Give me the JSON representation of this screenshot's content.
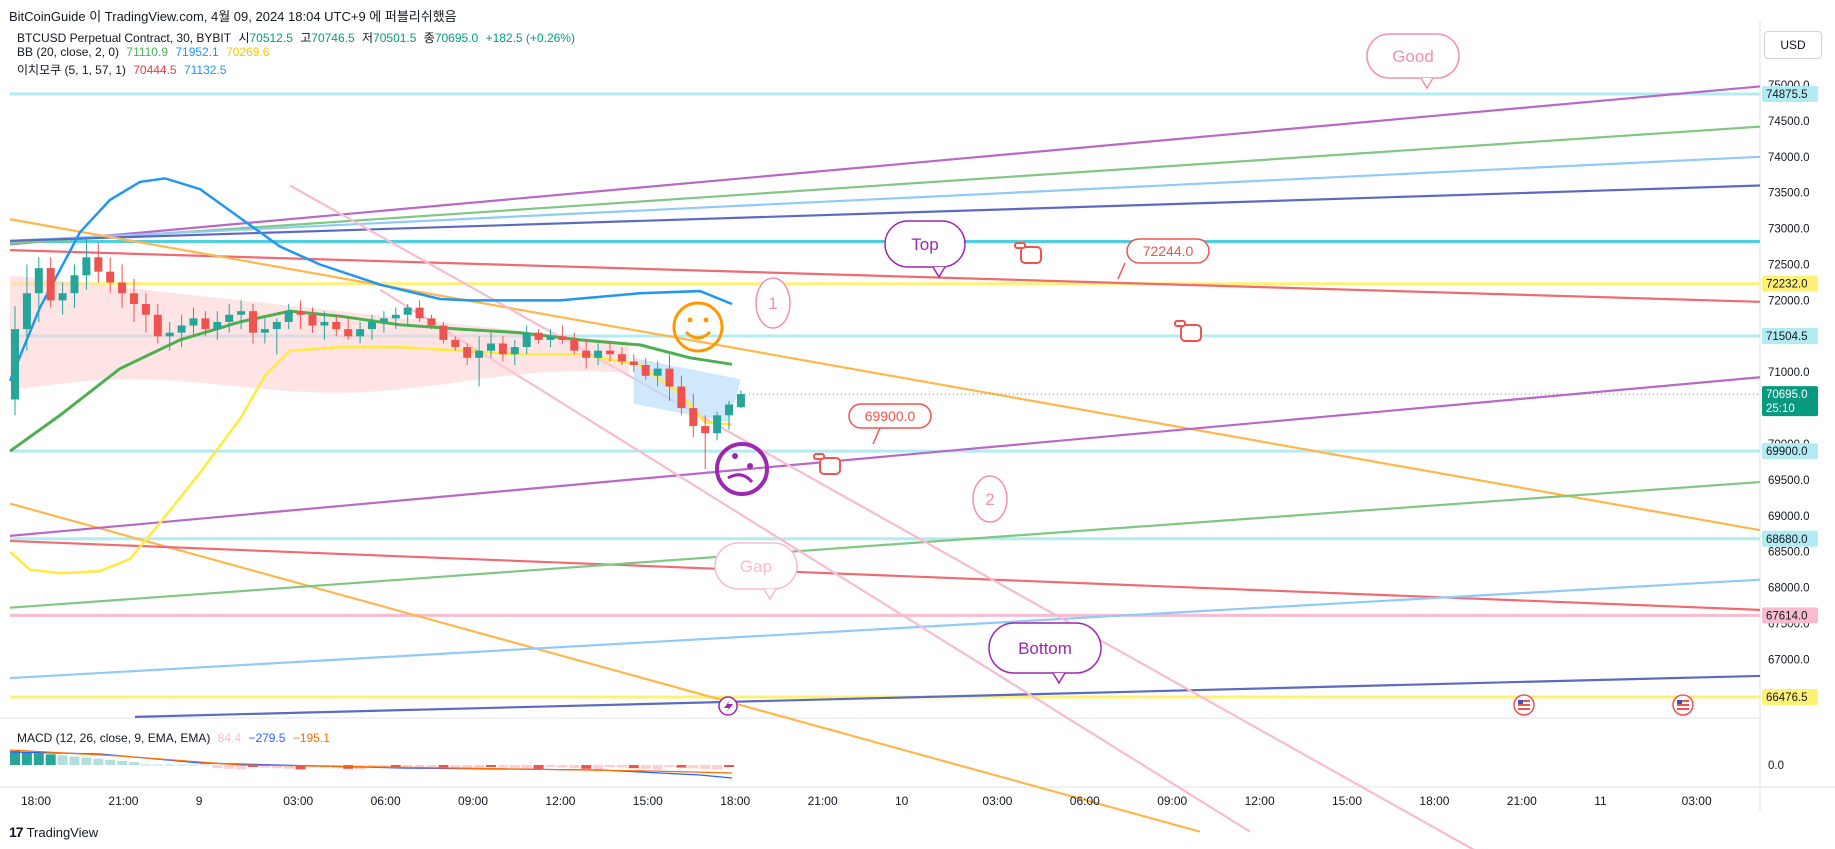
{
  "header": {
    "publisher": "BitCoinGuide 이 TradingView.com, 4월 09, 2024 18:04 UTC+9 에 퍼블리쉬했음"
  },
  "legend": {
    "symbol": "BTCUSD Perpetual Contract, 30, BYBIT",
    "open_label": "시",
    "open": "70512.5",
    "high_label": "고",
    "high": "70746.5",
    "low_label": "저",
    "low": "70501.5",
    "close_label": "종",
    "close": "70695.0",
    "change": "+182.5 (+0.26%)",
    "bb_label": "BB (20, close, 2, 0)",
    "bb_basis": "71110.9",
    "bb_upper": "71952.1",
    "bb_lower": "70269.6",
    "ichimoku_label": "이치모쿠 (5, 1, 57, 1)",
    "ich_a": "70444.5",
    "ich_b": "71132.5",
    "macd_label": "MACD (12, 26, close, 9, EMA, EMA)",
    "macd_hist": "84.4",
    "macd_line": "−279.5",
    "macd_signal": "−195.1"
  },
  "currency_button": "USD",
  "footer": {
    "brand": "TradingView",
    "logo": "17"
  },
  "colors": {
    "up": "#26a69a",
    "down": "#ef5350",
    "purple": "#ba68c8",
    "green": "#81c784",
    "lightblue": "#90caf9",
    "navy": "#5c6bc0",
    "cyan": "#4dd0e1",
    "red": "#ef6b73",
    "yellow": "#ffeb3b",
    "orange": "#ffb74d",
    "pink": "#f8bbd0"
  },
  "chart_data": {
    "type": "candlestick",
    "symbol": "BTCUSD",
    "interval": "30",
    "y_ticks": [
      75000,
      74500,
      74000,
      73500,
      73000,
      72500,
      72000,
      71500,
      71000,
      70500,
      70000,
      69500,
      69000,
      68500,
      68000,
      67500,
      67000,
      66500
    ],
    "x_ticks": [
      "18:00",
      "21:00",
      "9",
      "03:00",
      "06:00",
      "09:00",
      "12:00",
      "15:00",
      "18:00",
      "21:00",
      "10",
      "03:00",
      "06:00",
      "09:00",
      "12:00",
      "15:00",
      "18:00",
      "21:00",
      "11",
      "03:00"
    ],
    "macd_zero_tick": "0.0",
    "price_labels": [
      {
        "value": "74875.5",
        "color": "#b2ebf2"
      },
      {
        "value": "72232.0",
        "color": "#fff176"
      },
      {
        "value": "71504.5",
        "color": "#b2ebf2"
      },
      {
        "value": "70695.0",
        "color": "#089981",
        "countdown": "25:10"
      },
      {
        "value": "69900.0",
        "color": "#b2ebf2"
      },
      {
        "value": "68680.0",
        "color": "#b2ebf2"
      },
      {
        "value": "67614.0",
        "color": "#f8bbd0"
      },
      {
        "value": "66476.5",
        "color": "#fff176"
      }
    ],
    "callouts": [
      {
        "text": "Good"
      },
      {
        "text": "Top"
      },
      {
        "text": "72244.0"
      },
      {
        "text": "69900.0"
      },
      {
        "text": "1"
      },
      {
        "text": "2"
      },
      {
        "text": "Gap"
      },
      {
        "text": "Bottom"
      }
    ],
    "candles": [
      {
        "o": 70620,
        "h": 71920,
        "l": 70400,
        "c": 71600
      },
      {
        "o": 71600,
        "h": 72500,
        "l": 71300,
        "c": 72100
      },
      {
        "o": 72100,
        "h": 72600,
        "l": 71700,
        "c": 72450
      },
      {
        "o": 72450,
        "h": 72600,
        "l": 71900,
        "c": 72000
      },
      {
        "o": 72000,
        "h": 72250,
        "l": 71800,
        "c": 72100
      },
      {
        "o": 72100,
        "h": 72500,
        "l": 71900,
        "c": 72350
      },
      {
        "o": 72350,
        "h": 72850,
        "l": 72150,
        "c": 72600
      },
      {
        "o": 72600,
        "h": 72800,
        "l": 72250,
        "c": 72400
      },
      {
        "o": 72400,
        "h": 72600,
        "l": 72100,
        "c": 72250
      },
      {
        "o": 72250,
        "h": 72500,
        "l": 71900,
        "c": 72100
      },
      {
        "o": 72100,
        "h": 72300,
        "l": 71700,
        "c": 71950
      },
      {
        "o": 71950,
        "h": 72100,
        "l": 71550,
        "c": 71800
      },
      {
        "o": 71800,
        "h": 71950,
        "l": 71400,
        "c": 71500
      },
      {
        "o": 71500,
        "h": 71700,
        "l": 71300,
        "c": 71550
      },
      {
        "o": 71550,
        "h": 71800,
        "l": 71350,
        "c": 71650
      },
      {
        "o": 71650,
        "h": 71900,
        "l": 71500,
        "c": 71750
      },
      {
        "o": 71750,
        "h": 71850,
        "l": 71500,
        "c": 71600
      },
      {
        "o": 71600,
        "h": 71850,
        "l": 71450,
        "c": 71700
      },
      {
        "o": 71700,
        "h": 71950,
        "l": 71550,
        "c": 71800
      },
      {
        "o": 71800,
        "h": 72000,
        "l": 71600,
        "c": 71850
      },
      {
        "o": 71850,
        "h": 71950,
        "l": 71400,
        "c": 71550
      },
      {
        "o": 71550,
        "h": 71750,
        "l": 71400,
        "c": 71600
      },
      {
        "o": 71600,
        "h": 71750,
        "l": 71250,
        "c": 71700
      },
      {
        "o": 71700,
        "h": 71950,
        "l": 71600,
        "c": 71850
      },
      {
        "o": 71850,
        "h": 72000,
        "l": 71600,
        "c": 71800
      },
      {
        "o": 71800,
        "h": 71900,
        "l": 71550,
        "c": 71650
      },
      {
        "o": 71650,
        "h": 71850,
        "l": 71450,
        "c": 71700
      },
      {
        "o": 71700,
        "h": 71800,
        "l": 71500,
        "c": 71600
      },
      {
        "o": 71600,
        "h": 71750,
        "l": 71450,
        "c": 71500
      },
      {
        "o": 71500,
        "h": 71700,
        "l": 71400,
        "c": 71600
      },
      {
        "o": 71600,
        "h": 71800,
        "l": 71450,
        "c": 71700
      },
      {
        "o": 71700,
        "h": 71850,
        "l": 71550,
        "c": 71750
      },
      {
        "o": 71750,
        "h": 71900,
        "l": 71600,
        "c": 71800
      },
      {
        "o": 71800,
        "h": 71950,
        "l": 71650,
        "c": 71900
      },
      {
        "o": 71900,
        "h": 72000,
        "l": 71700,
        "c": 71750
      },
      {
        "o": 71750,
        "h": 71800,
        "l": 71600,
        "c": 71650
      },
      {
        "o": 71650,
        "h": 71700,
        "l": 71400,
        "c": 71450
      },
      {
        "o": 71450,
        "h": 71500,
        "l": 71300,
        "c": 71350
      },
      {
        "o": 71350,
        "h": 71400,
        "l": 71100,
        "c": 71200
      },
      {
        "o": 71200,
        "h": 71500,
        "l": 70800,
        "c": 71300
      },
      {
        "o": 71300,
        "h": 71550,
        "l": 71200,
        "c": 71400
      },
      {
        "o": 71400,
        "h": 71500,
        "l": 71150,
        "c": 71250
      },
      {
        "o": 71250,
        "h": 71450,
        "l": 71100,
        "c": 71350
      },
      {
        "o": 71350,
        "h": 71650,
        "l": 71250,
        "c": 71550
      },
      {
        "o": 71550,
        "h": 71600,
        "l": 71400,
        "c": 71450
      },
      {
        "o": 71450,
        "h": 71600,
        "l": 71350,
        "c": 71500
      },
      {
        "o": 71500,
        "h": 71650,
        "l": 71400,
        "c": 71450
      },
      {
        "o": 71450,
        "h": 71550,
        "l": 71250,
        "c": 71300
      },
      {
        "o": 71300,
        "h": 71450,
        "l": 71050,
        "c": 71200
      },
      {
        "o": 71200,
        "h": 71400,
        "l": 71100,
        "c": 71300
      },
      {
        "o": 71300,
        "h": 71400,
        "l": 71150,
        "c": 71250
      },
      {
        "o": 71250,
        "h": 71350,
        "l": 71100,
        "c": 71150
      },
      {
        "o": 71150,
        "h": 71250,
        "l": 71000,
        "c": 71100
      },
      {
        "o": 71100,
        "h": 71200,
        "l": 70900,
        "c": 70950
      },
      {
        "o": 70950,
        "h": 71150,
        "l": 70800,
        "c": 71050
      },
      {
        "o": 71050,
        "h": 71250,
        "l": 70600,
        "c": 70800
      },
      {
        "o": 70800,
        "h": 70950,
        "l": 70400,
        "c": 70500
      },
      {
        "o": 70500,
        "h": 70700,
        "l": 70100,
        "c": 70250
      },
      {
        "o": 70250,
        "h": 70400,
        "l": 69650,
        "c": 70150
      },
      {
        "o": 70150,
        "h": 70450,
        "l": 70050,
        "c": 70400
      },
      {
        "o": 70400,
        "h": 70600,
        "l": 70200,
        "c": 70550
      },
      {
        "o": 70512.5,
        "h": 70746.5,
        "l": 70501.5,
        "c": 70695
      }
    ]
  }
}
